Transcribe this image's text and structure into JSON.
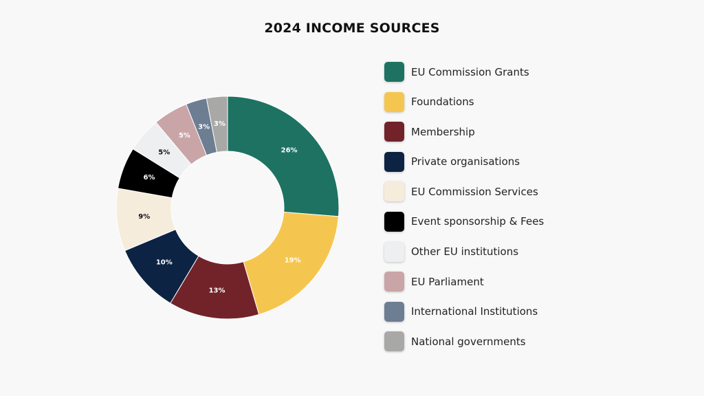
{
  "chart_data": {
    "type": "pie",
    "title": "2024 INCOME SOURCES",
    "categories": [
      "EU Commission Grants",
      "Foundations",
      "Membership",
      "Private organisations",
      "EU Commission Services",
      "Event sponsorship & Fees",
      "Other EU institutions",
      "EU Parliament",
      "International Institutions",
      "National governments"
    ],
    "values": [
      26,
      19,
      13,
      10,
      9,
      6,
      5,
      5,
      3,
      3
    ],
    "value_labels": [
      "26%",
      "19%",
      "13%",
      "10%",
      "9%",
      "6%",
      "5%",
      "5%",
      "3%",
      "3%"
    ],
    "colors": [
      "#1e7262",
      "#f5c64f",
      "#72232a",
      "#0c2344",
      "#f5ecdc",
      "#000000",
      "#eeeff1",
      "#c9a5a8",
      "#6d7d92",
      "#a8a8a6"
    ],
    "label_colors": [
      "#ffffff",
      "#ffffff",
      "#ffffff",
      "#ffffff",
      "#111111",
      "#ffffff",
      "#111111",
      "#ffffff",
      "#ffffff",
      "#ffffff"
    ],
    "hole": "donut",
    "legend_position": "right"
  }
}
